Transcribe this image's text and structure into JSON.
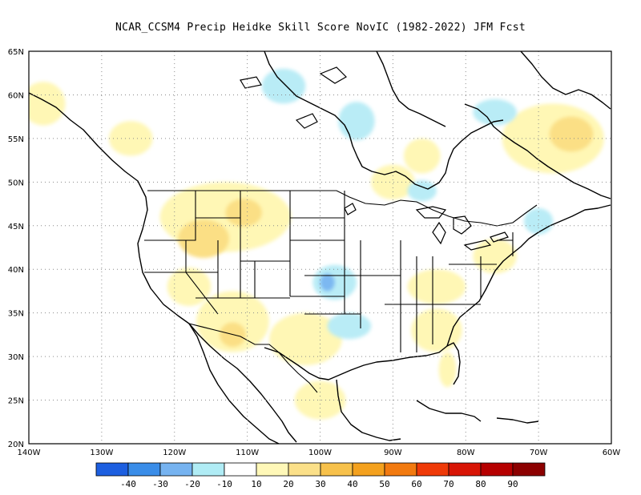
{
  "title": "NCAR_CCSM4 Precip Heidke Skill Score NovIC (1982-2022) JFM Fcst",
  "map": {
    "projection": "cylindrical",
    "lon_range": [
      -140,
      -60
    ],
    "lat_range": [
      20,
      65
    ],
    "grid": "dotted",
    "lat_ticks": [
      "20N",
      "25N",
      "30N",
      "35N",
      "40N",
      "45N",
      "50N",
      "55N",
      "60N",
      "65N"
    ],
    "lon_ticks": [
      "140W",
      "130W",
      "120W",
      "110W",
      "100W",
      "90W",
      "80W",
      "70W",
      "60W"
    ]
  },
  "colorbar": {
    "labels": [
      "-40",
      "-30",
      "-20",
      "-10",
      "10",
      "20",
      "30",
      "40",
      "50",
      "60",
      "70",
      "80",
      "90"
    ],
    "colors": [
      "#1d5fe0",
      "#3a8de8",
      "#76b3f0",
      "#b0ecf5",
      "#ffffff",
      "#fff8b8",
      "#fbe089",
      "#f7c14b",
      "#f4a11e",
      "#f27a10",
      "#ef3a08",
      "#d81505",
      "#b60000",
      "#8c0000"
    ]
  },
  "skill_regions": [
    {
      "category": "10-20",
      "lon": -113,
      "lat": 46,
      "rx": 9,
      "ry": 4
    },
    {
      "category": "20-30",
      "lon": -116,
      "lat": 43.5,
      "rx": 3.5,
      "ry": 2.2
    },
    {
      "category": "20-30",
      "lon": -110.5,
      "lat": 46.5,
      "rx": 2.5,
      "ry": 1.6
    },
    {
      "category": "10-20",
      "lon": -112,
      "lat": 34,
      "rx": 5,
      "ry": 3.5
    },
    {
      "category": "20-30",
      "lon": -112,
      "lat": 32.5,
      "rx": 1.8,
      "ry": 1.4
    },
    {
      "category": "10-20",
      "lon": -102,
      "lat": 32,
      "rx": 5,
      "ry": 3
    },
    {
      "category": "10-20",
      "lon": -68,
      "lat": 55,
      "rx": 7,
      "ry": 4
    },
    {
      "category": "20-30",
      "lon": -65.5,
      "lat": 55.5,
      "rx": 3,
      "ry": 2
    },
    {
      "category": "10-20",
      "lon": -84,
      "lat": 33,
      "rx": 3.5,
      "ry": 2.5
    },
    {
      "category": "10-20",
      "lon": -84,
      "lat": 38,
      "rx": 4,
      "ry": 2
    },
    {
      "category": "10-20",
      "lon": -76,
      "lat": 41.5,
      "rx": 3,
      "ry": 2
    },
    {
      "category": "10-20",
      "lon": -138,
      "lat": 59,
      "rx": 3,
      "ry": 2.5
    },
    {
      "category": "10-20",
      "lon": -126,
      "lat": 55,
      "rx": 3,
      "ry": 2
    },
    {
      "category": "10-20",
      "lon": -90,
      "lat": 50,
      "rx": 3,
      "ry": 2
    },
    {
      "category": "10-20",
      "lon": -86,
      "lat": 53,
      "rx": 2.5,
      "ry": 2
    },
    {
      "category": "10-20",
      "lon": -118,
      "lat": 38,
      "rx": 3,
      "ry": 2.2
    },
    {
      "category": "10-20",
      "lon": -100,
      "lat": 25,
      "rx": 3.5,
      "ry": 2.2
    },
    {
      "category": "10-20",
      "lon": -82.5,
      "lat": 28.5,
      "rx": 1.2,
      "ry": 2
    },
    {
      "category": "-10--20",
      "lon": -95,
      "lat": 57,
      "rx": 2.5,
      "ry": 2.2
    },
    {
      "category": "-10--20",
      "lon": -105,
      "lat": 61,
      "rx": 3,
      "ry": 2
    },
    {
      "category": "-10--20",
      "lon": -98,
      "lat": 38.5,
      "rx": 3,
      "ry": 2
    },
    {
      "category": "-20--30",
      "lon": -99,
      "lat": 38.5,
      "rx": 1,
      "ry": 1
    },
    {
      "category": "-10--20",
      "lon": -76,
      "lat": 58,
      "rx": 3,
      "ry": 1.5
    },
    {
      "category": "-10--20",
      "lon": -70,
      "lat": 45.5,
      "rx": 2,
      "ry": 1.5
    },
    {
      "category": "-10--20",
      "lon": -96,
      "lat": 33.5,
      "rx": 3,
      "ry": 1.5
    },
    {
      "category": "-10--20",
      "lon": -86,
      "lat": 49,
      "rx": 2,
      "ry": 1.2
    }
  ]
}
